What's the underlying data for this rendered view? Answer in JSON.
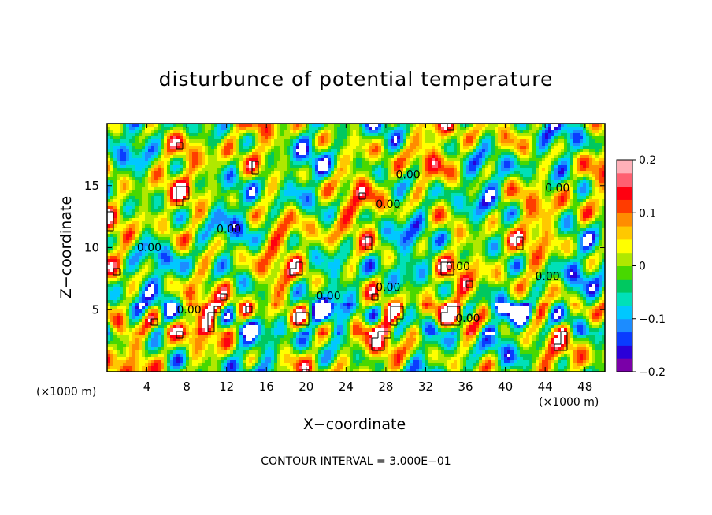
{
  "chart_data": {
    "type": "heatmap",
    "title": "disturbunce of potential temperature",
    "xlabel": "X−coordinate",
    "ylabel": "Z−coordinate",
    "x_unit_left": "(×1000 m)",
    "x_unit_right": "(×1000 m)",
    "xlim": [
      0,
      50
    ],
    "ylim": [
      0,
      20
    ],
    "x_ticks": [
      4,
      8,
      12,
      16,
      20,
      24,
      28,
      32,
      36,
      40,
      44,
      48
    ],
    "y_ticks": [
      5,
      10,
      15
    ],
    "colorbar": {
      "min": -0.2,
      "max": 0.2,
      "ticks": [
        "0.2",
        "0.1",
        "0",
        "−0.1",
        "−0.2"
      ],
      "colors": [
        "#7a00a8",
        "#2a00d8",
        "#0a3cff",
        "#1c8cff",
        "#00c8ff",
        "#00e0b8",
        "#00c860",
        "#48d800",
        "#b0e800",
        "#ffff00",
        "#ffc800",
        "#ff8c00",
        "#ff3c00",
        "#ff0010",
        "#ff6070",
        "#ffb0b8"
      ]
    },
    "contour_labels": [
      {
        "x": 29,
        "z": 15.6,
        "text": "0.00"
      },
      {
        "x": 44,
        "z": 14.5,
        "text": "0.00"
      },
      {
        "x": 27,
        "z": 13.2,
        "text": "0.00"
      },
      {
        "x": 11,
        "z": 11.2,
        "text": "0.00"
      },
      {
        "x": 3,
        "z": 9.7,
        "text": "0.00"
      },
      {
        "x": 34,
        "z": 8.2,
        "text": "0.00"
      },
      {
        "x": 43,
        "z": 7.4,
        "text": "0.00"
      },
      {
        "x": 27,
        "z": 6.5,
        "text": "0.00"
      },
      {
        "x": 21,
        "z": 5.8,
        "text": "0.00"
      },
      {
        "x": 7,
        "z": 4.7,
        "text": "0.00"
      },
      {
        "x": 35,
        "z": 4.0,
        "text": "0.00"
      }
    ],
    "contour_interval": "CONTOUR INTERVAL = 3.000E−01"
  }
}
